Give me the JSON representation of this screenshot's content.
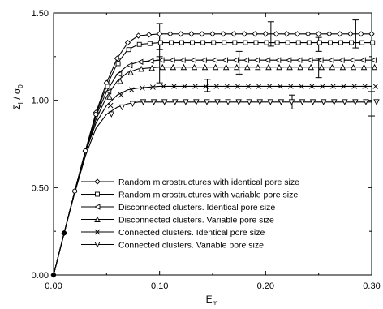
{
  "chart_data": {
    "type": "line",
    "title": "",
    "xlabel": "E",
    "xlabel_sub": "m",
    "ylabel": "Σ",
    "ylabel_sub1": "I",
    "ylabel_mid": " / σ",
    "ylabel_sub2": "0",
    "xlim": [
      0.0,
      0.3
    ],
    "ylim": [
      0.0,
      1.5
    ],
    "xticks": [
      0.0,
      0.1,
      0.2,
      0.3
    ],
    "xtick_labels": [
      "0.00",
      "0.10",
      "0.20",
      "0.30"
    ],
    "yticks": [
      0.0,
      0.5,
      1.0,
      1.5
    ],
    "ytick_labels": [
      "0.00",
      "0.50",
      "1.00",
      "1.50"
    ],
    "grid": false,
    "legend_position": "bottom-left",
    "elastic_branch": {
      "x": [
        0.0,
        0.01,
        0.02,
        0.03,
        0.04
      ],
      "y": [
        0.0,
        0.24,
        0.48,
        0.71,
        0.92
      ]
    },
    "series": [
      {
        "name": "Random microstructures with identical pore size",
        "marker": "diamond",
        "plateau": 1.38,
        "x": [
          0.0,
          0.01,
          0.02,
          0.03,
          0.04,
          0.05,
          0.06,
          0.07,
          0.08,
          0.1,
          0.15,
          0.2,
          0.25,
          0.3
        ],
        "y": [
          0.0,
          0.24,
          0.48,
          0.71,
          0.93,
          1.1,
          1.24,
          1.33,
          1.37,
          1.38,
          1.38,
          1.38,
          1.38,
          1.38
        ],
        "error_bars": [
          {
            "x": 0.1,
            "low": 1.29,
            "high": 1.44
          },
          {
            "x": 0.205,
            "low": 1.31,
            "high": 1.45
          },
          {
            "x": 0.285,
            "low": 1.3,
            "high": 1.46
          }
        ]
      },
      {
        "name": "Random microstructures with variable pore size",
        "marker": "square",
        "plateau": 1.33,
        "x": [
          0.0,
          0.01,
          0.02,
          0.03,
          0.04,
          0.05,
          0.06,
          0.07,
          0.08,
          0.1,
          0.15,
          0.2,
          0.25,
          0.3
        ],
        "y": [
          0.0,
          0.24,
          0.48,
          0.71,
          0.92,
          1.08,
          1.21,
          1.29,
          1.32,
          1.33,
          1.33,
          1.33,
          1.33,
          1.33
        ],
        "error_bars": [
          {
            "x": 0.1,
            "low": 1.23,
            "high": 1.38
          },
          {
            "x": 0.25,
            "low": 1.28,
            "high": 1.36
          }
        ]
      },
      {
        "name": "Disconnected clusters. Identical pore size",
        "marker": "triangle-left",
        "plateau": 1.23,
        "x": [
          0.0,
          0.01,
          0.02,
          0.03,
          0.04,
          0.05,
          0.06,
          0.07,
          0.08,
          0.1,
          0.15,
          0.2,
          0.25,
          0.3
        ],
        "y": [
          0.0,
          0.24,
          0.48,
          0.71,
          0.91,
          1.05,
          1.15,
          1.2,
          1.22,
          1.23,
          1.23,
          1.23,
          1.23,
          1.23
        ],
        "error_bars": [
          {
            "x": 0.175,
            "low": 1.15,
            "high": 1.28
          }
        ]
      },
      {
        "name": "Disconnected clusters. Variable pore size",
        "marker": "triangle-up",
        "plateau": 1.19,
        "x": [
          0.0,
          0.01,
          0.02,
          0.03,
          0.04,
          0.05,
          0.06,
          0.07,
          0.08,
          0.1,
          0.15,
          0.2,
          0.25,
          0.3
        ],
        "y": [
          0.0,
          0.24,
          0.48,
          0.7,
          0.89,
          1.02,
          1.11,
          1.16,
          1.18,
          1.19,
          1.19,
          1.19,
          1.19,
          1.19
        ],
        "error_bars": [
          {
            "x": 0.1,
            "low": 1.1,
            "high": 1.25
          },
          {
            "x": 0.25,
            "low": 1.13,
            "high": 1.24
          }
        ]
      },
      {
        "name": "Connected clusters. Identical pore size",
        "marker": "x",
        "plateau": 1.08,
        "x": [
          0.0,
          0.01,
          0.02,
          0.03,
          0.04,
          0.05,
          0.06,
          0.07,
          0.08,
          0.1,
          0.15,
          0.2,
          0.25,
          0.3
        ],
        "y": [
          0.0,
          0.24,
          0.48,
          0.7,
          0.87,
          0.97,
          1.03,
          1.06,
          1.07,
          1.08,
          1.08,
          1.08,
          1.08,
          1.08
        ],
        "error_bars": [
          {
            "x": 0.145,
            "low": 1.05,
            "high": 1.12
          }
        ]
      },
      {
        "name": "Connected clusters. Variable pore size",
        "marker": "triangle-down",
        "plateau": 0.99,
        "x": [
          0.0,
          0.01,
          0.02,
          0.03,
          0.04,
          0.05,
          0.06,
          0.07,
          0.08,
          0.1,
          0.15,
          0.2,
          0.25,
          0.3
        ],
        "y": [
          0.0,
          0.24,
          0.47,
          0.68,
          0.84,
          0.92,
          0.96,
          0.98,
          0.99,
          0.99,
          0.99,
          0.99,
          0.99,
          0.99
        ],
        "error_bars": [
          {
            "x": 0.225,
            "low": 0.95,
            "high": 1.03
          },
          {
            "x": 0.3,
            "low": 0.91,
            "high": 1.05
          }
        ]
      }
    ]
  }
}
